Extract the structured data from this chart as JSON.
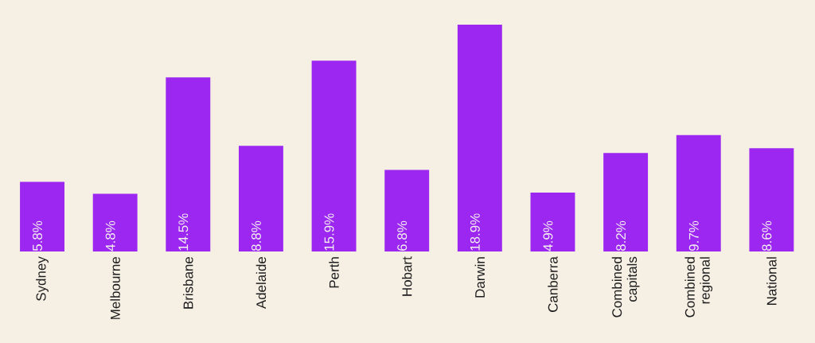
{
  "chart_data": {
    "type": "bar",
    "categories": [
      "Sydney",
      "Melbourne",
      "Brisbane",
      "Adelaide",
      "Perth",
      "Hobart",
      "Darwin",
      "Canberra",
      "Combined capitals",
      "Combined regional",
      "National"
    ],
    "values": [
      5.8,
      4.8,
      14.5,
      8.8,
      15.9,
      6.8,
      18.9,
      4.9,
      8.2,
      9.7,
      8.6
    ],
    "color": "#9b27f0",
    "value_labels": [
      "5.8%",
      "4.8%",
      "14.5%",
      "8.8%",
      "15.9%",
      "6.8%",
      "18.9%",
      "4.9%",
      "8.2%",
      "9.7%",
      "8.6%"
    ]
  }
}
